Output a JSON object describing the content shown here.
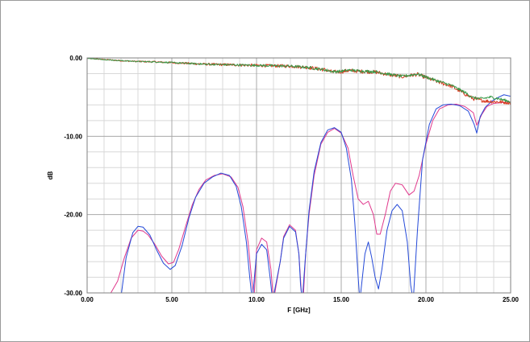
{
  "chart_data": {
    "type": "line",
    "title": "",
    "xlabel": "F [GHz]",
    "ylabel": "dB",
    "xlim": [
      0,
      25
    ],
    "ylim": [
      -30,
      0
    ],
    "x_ticks": [
      0,
      5,
      10,
      15,
      20,
      25
    ],
    "x_tick_labels": [
      "0.00",
      "5.00",
      "10.00",
      "15.00",
      "20.00",
      "25.00"
    ],
    "y_ticks": [
      0,
      -10,
      -20,
      -30
    ],
    "y_tick_labels": [
      "0.00",
      "-10.00",
      "-20.00",
      "-30.00"
    ],
    "grid": true,
    "legend": "none",
    "series": [
      {
        "color": "#e0388c",
        "noise": 0,
        "points": [
          [
            1.0,
            -30.5
          ],
          [
            1.4,
            -30.0
          ],
          [
            1.8,
            -28.5
          ],
          [
            2.2,
            -25.5
          ],
          [
            2.6,
            -23.0
          ],
          [
            3.0,
            -22.0
          ],
          [
            3.3,
            -22.1
          ],
          [
            3.6,
            -22.6
          ],
          [
            4.0,
            -23.8
          ],
          [
            4.4,
            -25.3
          ],
          [
            4.8,
            -26.3
          ],
          [
            5.1,
            -26.1
          ],
          [
            5.4,
            -24.5
          ],
          [
            5.8,
            -21.6
          ],
          [
            6.2,
            -18.8
          ],
          [
            6.6,
            -16.8
          ],
          [
            7.0,
            -15.6
          ],
          [
            7.5,
            -15.0
          ],
          [
            8.0,
            -14.8
          ],
          [
            8.5,
            -15.2
          ],
          [
            8.9,
            -16.5
          ],
          [
            9.2,
            -19.0
          ],
          [
            9.5,
            -23.5
          ],
          [
            9.7,
            -28.0
          ],
          [
            9.85,
            -31.0
          ],
          [
            10.0,
            -24.5
          ],
          [
            10.3,
            -23.0
          ],
          [
            10.6,
            -23.5
          ],
          [
            10.85,
            -27.0
          ],
          [
            11.0,
            -31.0
          ],
          [
            11.4,
            -26.0
          ],
          [
            11.6,
            -22.8
          ],
          [
            11.95,
            -21.3
          ],
          [
            12.3,
            -22.0
          ],
          [
            12.5,
            -25.0
          ],
          [
            12.65,
            -30.0
          ],
          [
            12.75,
            -31.0
          ],
          [
            12.9,
            -25.0
          ],
          [
            13.1,
            -20.0
          ],
          [
            13.4,
            -15.0
          ],
          [
            13.8,
            -11.0
          ],
          [
            14.2,
            -9.5
          ],
          [
            14.6,
            -9.0
          ],
          [
            15.0,
            -9.6
          ],
          [
            15.4,
            -11.5
          ],
          [
            15.7,
            -15.0
          ],
          [
            16.0,
            -18.0
          ],
          [
            16.3,
            -18.7
          ],
          [
            16.6,
            -18.3
          ],
          [
            16.9,
            -20.0
          ],
          [
            17.1,
            -22.5
          ],
          [
            17.3,
            -22.5
          ],
          [
            17.6,
            -20.0
          ],
          [
            17.9,
            -17.0
          ],
          [
            18.2,
            -16.0
          ],
          [
            18.6,
            -16.2
          ],
          [
            19.0,
            -17.5
          ],
          [
            19.3,
            -17.0
          ],
          [
            19.6,
            -15.0
          ],
          [
            20.0,
            -11.0
          ],
          [
            20.4,
            -8.0
          ],
          [
            20.8,
            -6.5
          ],
          [
            21.3,
            -6.0
          ],
          [
            21.8,
            -5.9
          ],
          [
            22.3,
            -6.2
          ],
          [
            22.8,
            -7.0
          ],
          [
            23.0,
            -8.6
          ],
          [
            23.3,
            -7.2
          ],
          [
            23.6,
            -6.2
          ],
          [
            24.0,
            -5.8
          ],
          [
            24.5,
            -5.7
          ],
          [
            25.0,
            -5.6
          ]
        ]
      },
      {
        "color": "#2449d8",
        "noise": 0,
        "points": [
          [
            2.0,
            -30.5
          ],
          [
            2.3,
            -25.5
          ],
          [
            2.7,
            -22.3
          ],
          [
            3.0,
            -21.5
          ],
          [
            3.3,
            -21.6
          ],
          [
            3.7,
            -22.6
          ],
          [
            4.1,
            -24.5
          ],
          [
            4.5,
            -26.2
          ],
          [
            4.9,
            -27.0
          ],
          [
            5.2,
            -26.5
          ],
          [
            5.6,
            -24.0
          ],
          [
            6.0,
            -20.5
          ],
          [
            6.4,
            -17.8
          ],
          [
            6.9,
            -16.0
          ],
          [
            7.4,
            -15.2
          ],
          [
            7.9,
            -14.7
          ],
          [
            8.4,
            -15.0
          ],
          [
            8.8,
            -16.4
          ],
          [
            9.1,
            -19.0
          ],
          [
            9.4,
            -23.5
          ],
          [
            9.6,
            -28.0
          ],
          [
            9.75,
            -31.0
          ],
          [
            10.0,
            -25.0
          ],
          [
            10.3,
            -23.8
          ],
          [
            10.6,
            -24.5
          ],
          [
            10.8,
            -28.0
          ],
          [
            10.95,
            -31.0
          ],
          [
            11.4,
            -26.0
          ],
          [
            11.6,
            -23.0
          ],
          [
            11.95,
            -21.5
          ],
          [
            12.3,
            -22.2
          ],
          [
            12.5,
            -25.0
          ],
          [
            12.6,
            -29.0
          ],
          [
            12.7,
            -31.0
          ],
          [
            12.9,
            -25.0
          ],
          [
            13.1,
            -19.5
          ],
          [
            13.4,
            -14.5
          ],
          [
            13.8,
            -10.8
          ],
          [
            14.2,
            -9.2
          ],
          [
            14.6,
            -8.9
          ],
          [
            15.0,
            -9.5
          ],
          [
            15.3,
            -11.5
          ],
          [
            15.6,
            -15.5
          ],
          [
            15.8,
            -21.0
          ],
          [
            16.0,
            -28.0
          ],
          [
            16.1,
            -31.0
          ],
          [
            16.4,
            -25.0
          ],
          [
            16.6,
            -23.5
          ],
          [
            16.8,
            -25.5
          ],
          [
            17.0,
            -28.0
          ],
          [
            17.2,
            -29.5
          ],
          [
            17.4,
            -27.0
          ],
          [
            17.7,
            -22.0
          ],
          [
            18.0,
            -19.5
          ],
          [
            18.3,
            -18.7
          ],
          [
            18.6,
            -19.5
          ],
          [
            18.9,
            -23.5
          ],
          [
            19.1,
            -29.0
          ],
          [
            19.25,
            -31.0
          ],
          [
            19.5,
            -22.0
          ],
          [
            19.8,
            -13.0
          ],
          [
            20.2,
            -8.5
          ],
          [
            20.6,
            -6.5
          ],
          [
            21.0,
            -6.0
          ],
          [
            21.5,
            -5.9
          ],
          [
            22.0,
            -6.1
          ],
          [
            22.5,
            -6.8
          ],
          [
            22.85,
            -8.5
          ],
          [
            23.0,
            -9.6
          ],
          [
            23.2,
            -7.5
          ],
          [
            23.5,
            -6.3
          ],
          [
            23.9,
            -5.5
          ],
          [
            24.3,
            -5.0
          ],
          [
            24.6,
            -4.7
          ],
          [
            25.0,
            -4.9
          ]
        ]
      },
      {
        "color": "#d83a20",
        "noise": 0.18,
        "points": [
          [
            0.0,
            -0.05
          ],
          [
            1.0,
            -0.2
          ],
          [
            2.0,
            -0.35
          ],
          [
            3.0,
            -0.45
          ],
          [
            4.0,
            -0.5
          ],
          [
            5.0,
            -0.6
          ],
          [
            6.0,
            -0.7
          ],
          [
            7.0,
            -0.8
          ],
          [
            8.0,
            -0.85
          ],
          [
            9.0,
            -0.9
          ],
          [
            10.0,
            -0.95
          ],
          [
            11.0,
            -1.0
          ],
          [
            12.0,
            -1.05
          ],
          [
            13.0,
            -1.2
          ],
          [
            14.0,
            -1.5
          ],
          [
            14.5,
            -1.8
          ],
          [
            15.0,
            -1.75
          ],
          [
            15.5,
            -1.6
          ],
          [
            16.0,
            -1.7
          ],
          [
            17.0,
            -1.8
          ],
          [
            18.0,
            -2.2
          ],
          [
            18.6,
            -2.4
          ],
          [
            19.5,
            -2.1
          ],
          [
            20.5,
            -2.9
          ],
          [
            21.5,
            -3.6
          ],
          [
            22.3,
            -4.6
          ],
          [
            22.8,
            -5.2
          ],
          [
            23.5,
            -5.5
          ],
          [
            24.2,
            -5.6
          ],
          [
            25.0,
            -5.7
          ]
        ]
      },
      {
        "color": "#3a9a4a",
        "noise": 0.14,
        "points": [
          [
            0.0,
            -0.05
          ],
          [
            1.0,
            -0.2
          ],
          [
            2.0,
            -0.35
          ],
          [
            3.0,
            -0.45
          ],
          [
            4.0,
            -0.5
          ],
          [
            5.0,
            -0.6
          ],
          [
            6.0,
            -0.7
          ],
          [
            7.0,
            -0.8
          ],
          [
            8.0,
            -0.85
          ],
          [
            9.0,
            -0.9
          ],
          [
            10.0,
            -0.95
          ],
          [
            11.0,
            -1.0
          ],
          [
            12.0,
            -1.05
          ],
          [
            13.0,
            -1.2
          ],
          [
            14.0,
            -1.5
          ],
          [
            14.5,
            -1.75
          ],
          [
            15.0,
            -1.7
          ],
          [
            15.5,
            -1.55
          ],
          [
            16.0,
            -1.65
          ],
          [
            17.0,
            -1.75
          ],
          [
            18.0,
            -2.15
          ],
          [
            18.6,
            -2.35
          ],
          [
            19.5,
            -2.05
          ],
          [
            20.5,
            -2.8
          ],
          [
            21.5,
            -3.5
          ],
          [
            22.3,
            -4.4
          ],
          [
            22.8,
            -5.1
          ],
          [
            23.3,
            -5.2
          ],
          [
            23.8,
            -5.0
          ],
          [
            24.3,
            -5.2
          ],
          [
            25.0,
            -5.6
          ]
        ]
      }
    ]
  }
}
